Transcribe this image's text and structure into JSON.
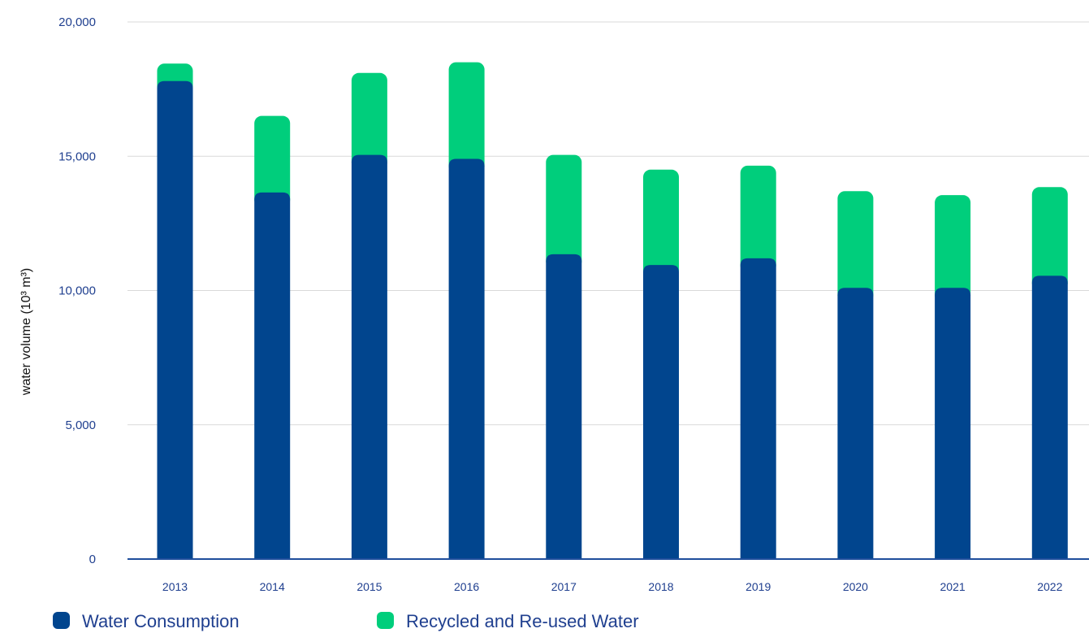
{
  "chart_data": {
    "type": "bar",
    "stacked": true,
    "title": "",
    "xlabel": "",
    "ylabel": "water volume (10³ m³)",
    "ylim": [
      0,
      20000
    ],
    "yticks": [
      0,
      5000,
      10000,
      15000,
      20000
    ],
    "ytick_labels": [
      "0",
      "5,000",
      "10,000",
      "15,000",
      "20,000"
    ],
    "grid": true,
    "legend_position": "bottom-left",
    "categories": [
      "2013",
      "2014",
      "2015",
      "2016",
      "2017",
      "2018",
      "2019",
      "2020",
      "2021",
      "2022"
    ],
    "series": [
      {
        "name": "Water Consumption",
        "color": "#01458e",
        "values": [
          17800,
          13650,
          15050,
          14900,
          11350,
          10950,
          11200,
          10100,
          10100,
          10550
        ]
      },
      {
        "name": "Recycled and Re-used Water",
        "color": "#00ce7c",
        "values": [
          650,
          2850,
          3050,
          3600,
          3700,
          3550,
          3450,
          3600,
          3450,
          3300
        ]
      }
    ]
  }
}
